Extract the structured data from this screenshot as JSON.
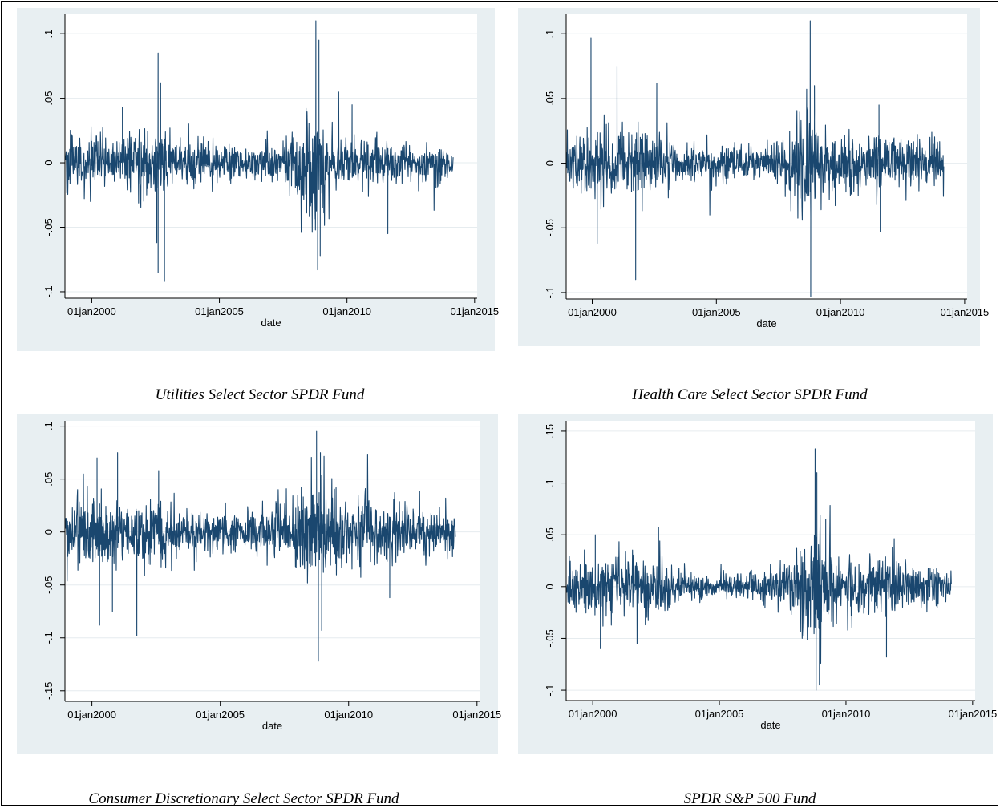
{
  "chart_data": [
    {
      "type": "line",
      "caption": "Utilities Select Sector SPDR Fund",
      "xlabel": "date",
      "ylabel": "",
      "x_ticks": [
        "01jan2000",
        "01jan2005",
        "01jan2010",
        "01jan2015"
      ],
      "x_tick_years": [
        2000,
        2005,
        2010,
        2015
      ],
      "y_ticks": [
        -0.1,
        -0.05,
        0,
        0.05,
        0.1
      ],
      "y_tick_labels": [
        "-.1",
        "-.05",
        "0",
        ".05",
        ".1"
      ],
      "xlim": [
        1998.95,
        2015.1
      ],
      "ylim": [
        -0.105,
        0.115
      ],
      "date_range": [
        "1998-12-22",
        "2014-02-28"
      ],
      "series": [
        {
          "color": "#1a476f",
          "noise_sd": [
            [
              1999.0,
              0.011
            ],
            [
              2001.0,
              0.009
            ],
            [
              2002.3,
              0.014
            ],
            [
              2003.5,
              0.008
            ],
            [
              2006.0,
              0.006
            ],
            [
              2007.5,
              0.008
            ],
            [
              2008.7,
              0.022
            ],
            [
              2009.5,
              0.012
            ],
            [
              2011.0,
              0.008
            ],
            [
              2014.2,
              0.006
            ]
          ],
          "spikes": [
            [
              2002.6,
              0.085
            ],
            [
              2002.7,
              0.062
            ],
            [
              2002.55,
              -0.062
            ],
            [
              2002.85,
              -0.092
            ],
            [
              2002.6,
              -0.085
            ],
            [
              2008.78,
              0.11
            ],
            [
              2008.9,
              0.095
            ],
            [
              2008.85,
              -0.083
            ],
            [
              2008.95,
              -0.072
            ],
            [
              2011.6,
              -0.055
            ],
            [
              2001.2,
              0.043
            ],
            [
              2010.2,
              0.045
            ]
          ]
        }
      ]
    },
    {
      "type": "line",
      "caption": "Health Care Select Sector SPDR Fund",
      "xlabel": "date",
      "ylabel": "",
      "x_ticks": [
        "01jan2000",
        "01jan2005",
        "01jan2010",
        "01jan2015"
      ],
      "x_tick_years": [
        2000,
        2005,
        2010,
        2015
      ],
      "y_ticks": [
        -0.1,
        -0.05,
        0,
        0.05,
        0.1
      ],
      "y_tick_labels": [
        "-.1",
        "-.05",
        "0",
        ".05",
        ".1"
      ],
      "xlim": [
        1998.95,
        2015.1
      ],
      "ylim": [
        -0.105,
        0.115
      ],
      "date_range": [
        "1998-12-22",
        "2014-02-28"
      ],
      "series": [
        {
          "color": "#1a476f",
          "noise_sd": [
            [
              1999.0,
              0.011
            ],
            [
              2002.5,
              0.012
            ],
            [
              2003.5,
              0.007
            ],
            [
              2007.0,
              0.006
            ],
            [
              2008.7,
              0.018
            ],
            [
              2009.5,
              0.01
            ],
            [
              2011.6,
              0.011
            ],
            [
              2014.2,
              0.007
            ]
          ],
          "spikes": [
            [
              1999.95,
              0.097
            ],
            [
              2001.0,
              0.075
            ],
            [
              2001.75,
              -0.09
            ],
            [
              2000.2,
              -0.062
            ],
            [
              2002.6,
              0.062
            ],
            [
              2008.78,
              0.11
            ],
            [
              2008.8,
              -0.103
            ],
            [
              2008.95,
              0.06
            ],
            [
              2011.6,
              -0.053
            ],
            [
              2011.55,
              0.045
            ]
          ]
        }
      ]
    },
    {
      "type": "line",
      "caption": "Consumer Discretionary Select Sector SPDR Fund",
      "xlabel": "date",
      "ylabel": "",
      "x_ticks": [
        "01jan2000",
        "01jan2005",
        "01jan2010",
        "01jan2015"
      ],
      "x_tick_years": [
        2000,
        2005,
        2010,
        2015
      ],
      "y_ticks": [
        -0.15,
        -0.1,
        -0.05,
        0,
        0.05,
        0.1
      ],
      "y_tick_labels": [
        "-.15",
        "-.1",
        "-.05",
        "0",
        ".05",
        ".1"
      ],
      "xlim": [
        1998.95,
        2015.1
      ],
      "ylim": [
        -0.16,
        0.105
      ],
      "date_range": [
        "1998-12-22",
        "2014-02-28"
      ],
      "series": [
        {
          "color": "#1a476f",
          "noise_sd": [
            [
              1999.0,
              0.014
            ],
            [
              2001.0,
              0.017
            ],
            [
              2002.6,
              0.018
            ],
            [
              2003.5,
              0.01
            ],
            [
              2006.0,
              0.008
            ],
            [
              2007.5,
              0.013
            ],
            [
              2008.8,
              0.026
            ],
            [
              2009.6,
              0.016
            ],
            [
              2011.6,
              0.014
            ],
            [
              2014.2,
              0.009
            ]
          ],
          "spikes": [
            [
              2000.3,
              -0.088
            ],
            [
              2000.8,
              -0.075
            ],
            [
              2001.75,
              -0.098
            ],
            [
              2000.2,
              0.07
            ],
            [
              2001.0,
              0.075
            ],
            [
              2008.75,
              0.095
            ],
            [
              2008.82,
              -0.122
            ],
            [
              2008.95,
              -0.093
            ],
            [
              2008.9,
              0.075
            ],
            [
              2002.6,
              0.058
            ],
            [
              2011.6,
              -0.062
            ]
          ]
        }
      ]
    },
    {
      "type": "line",
      "caption": "SPDR S&P 500 Fund",
      "xlabel": "date",
      "ylabel": "",
      "x_ticks": [
        "01jan2000",
        "01jan2005",
        "01jan2010",
        "01jan2015"
      ],
      "x_tick_years": [
        2000,
        2005,
        2010,
        2015
      ],
      "y_ticks": [
        -0.1,
        -0.05,
        0,
        0.05,
        0.1,
        0.15
      ],
      "y_tick_labels": [
        "-.1",
        "-.05",
        "0",
        ".05",
        ".1",
        ".15"
      ],
      "xlim": [
        1998.95,
        2015.1
      ],
      "ylim": [
        -0.11,
        0.16
      ],
      "date_range": [
        "1998-12-22",
        "2014-02-28"
      ],
      "series": [
        {
          "color": "#1a476f",
          "noise_sd": [
            [
              1999.0,
              0.012
            ],
            [
              2001.0,
              0.013
            ],
            [
              2002.6,
              0.017
            ],
            [
              2003.5,
              0.008
            ],
            [
              2006.0,
              0.006
            ],
            [
              2007.5,
              0.011
            ],
            [
              2008.8,
              0.03
            ],
            [
              2009.6,
              0.013
            ],
            [
              2011.6,
              0.014
            ],
            [
              2014.2,
              0.007
            ]
          ],
          "spikes": [
            [
              2008.78,
              0.133
            ],
            [
              2008.85,
              0.11
            ],
            [
              2008.82,
              -0.1
            ],
            [
              2008.95,
              -0.095
            ],
            [
              2000.3,
              -0.06
            ],
            [
              2001.75,
              -0.055
            ],
            [
              2002.6,
              0.057
            ],
            [
              2011.6,
              -0.068
            ],
            [
              2000.1,
              0.05
            ],
            [
              2009.2,
              0.065
            ]
          ]
        }
      ]
    }
  ]
}
